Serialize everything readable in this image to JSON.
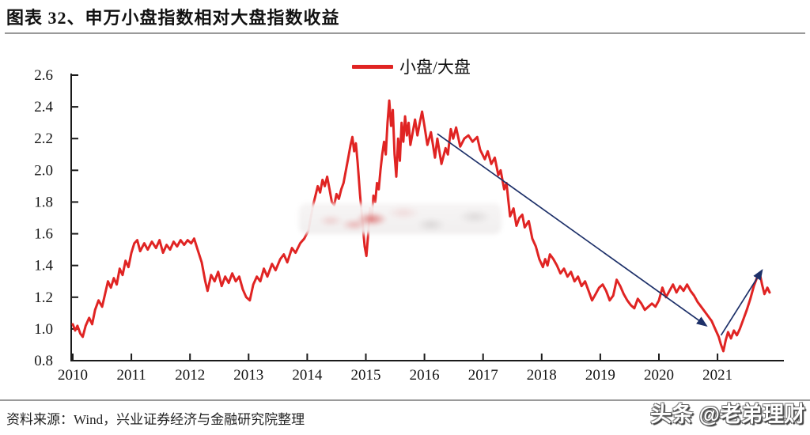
{
  "header": {
    "title": "图表 32、申万小盘指数相对大盘指数收益"
  },
  "footer": {
    "source_note": "资料来源：Wind，兴业证券经济与金融研究院整理",
    "watermark": "头条 @老弟理财"
  },
  "colors": {
    "series_red": "#e02423",
    "arrow_navy": "#1d3069",
    "axis_black": "#1a1a1a",
    "rule_gray": "#9a9a9a"
  },
  "chart_data": {
    "type": "line",
    "title": "图表 32、申万小盘指数相对大盘指数收益",
    "legend_label": "小盘/大盘",
    "legend_position": "top-center",
    "xlabel": "",
    "ylabel": "",
    "grid": false,
    "xlim": [
      2010.0,
      2022.15
    ],
    "ylim": [
      0.8,
      2.6
    ],
    "x_ticks": [
      2010,
      2011,
      2012,
      2013,
      2014,
      2015,
      2016,
      2017,
      2018,
      2019,
      2020,
      2021
    ],
    "y_ticks": [
      "0.8",
      "1.0",
      "1.2",
      "1.4",
      "1.6",
      "1.8",
      "2.0",
      "2.2",
      "2.4",
      "2.6"
    ],
    "series": [
      {
        "name": "小盘/大盘",
        "color": "#e02423",
        "points": [
          [
            2010.0,
            1.03
          ],
          [
            2010.04,
            0.99
          ],
          [
            2010.08,
            1.02
          ],
          [
            2010.13,
            0.97
          ],
          [
            2010.17,
            0.95
          ],
          [
            2010.22,
            1.02
          ],
          [
            2010.28,
            1.07
          ],
          [
            2010.33,
            1.03
          ],
          [
            2010.38,
            1.12
          ],
          [
            2010.44,
            1.18
          ],
          [
            2010.5,
            1.14
          ],
          [
            2010.55,
            1.22
          ],
          [
            2010.6,
            1.3
          ],
          [
            2010.65,
            1.26
          ],
          [
            2010.7,
            1.32
          ],
          [
            2010.75,
            1.28
          ],
          [
            2010.8,
            1.38
          ],
          [
            2010.85,
            1.34
          ],
          [
            2010.9,
            1.43
          ],
          [
            2010.95,
            1.39
          ],
          [
            2011.0,
            1.48
          ],
          [
            2011.05,
            1.54
          ],
          [
            2011.1,
            1.56
          ],
          [
            2011.15,
            1.49
          ],
          [
            2011.22,
            1.54
          ],
          [
            2011.28,
            1.5
          ],
          [
            2011.35,
            1.55
          ],
          [
            2011.42,
            1.51
          ],
          [
            2011.48,
            1.56
          ],
          [
            2011.54,
            1.48
          ],
          [
            2011.6,
            1.53
          ],
          [
            2011.66,
            1.5
          ],
          [
            2011.72,
            1.55
          ],
          [
            2011.78,
            1.52
          ],
          [
            2011.84,
            1.56
          ],
          [
            2011.9,
            1.53
          ],
          [
            2011.96,
            1.56
          ],
          [
            2012.02,
            1.54
          ],
          [
            2012.07,
            1.57
          ],
          [
            2012.13,
            1.5
          ],
          [
            2012.2,
            1.42
          ],
          [
            2012.26,
            1.3
          ],
          [
            2012.3,
            1.24
          ],
          [
            2012.36,
            1.34
          ],
          [
            2012.42,
            1.3
          ],
          [
            2012.48,
            1.36
          ],
          [
            2012.54,
            1.27
          ],
          [
            2012.6,
            1.33
          ],
          [
            2012.66,
            1.29
          ],
          [
            2012.72,
            1.35
          ],
          [
            2012.78,
            1.3
          ],
          [
            2012.84,
            1.33
          ],
          [
            2012.9,
            1.25
          ],
          [
            2012.96,
            1.2
          ],
          [
            2013.02,
            1.18
          ],
          [
            2013.08,
            1.28
          ],
          [
            2013.14,
            1.33
          ],
          [
            2013.2,
            1.3
          ],
          [
            2013.26,
            1.38
          ],
          [
            2013.32,
            1.33
          ],
          [
            2013.4,
            1.41
          ],
          [
            2013.46,
            1.37
          ],
          [
            2013.54,
            1.44
          ],
          [
            2013.6,
            1.47
          ],
          [
            2013.66,
            1.42
          ],
          [
            2013.74,
            1.51
          ],
          [
            2013.8,
            1.48
          ],
          [
            2013.88,
            1.54
          ],
          [
            2013.95,
            1.57
          ],
          [
            2014.02,
            1.62
          ],
          [
            2014.06,
            1.7
          ],
          [
            2014.1,
            1.78
          ],
          [
            2014.14,
            1.84
          ],
          [
            2014.18,
            1.9
          ],
          [
            2014.22,
            1.86
          ],
          [
            2014.26,
            1.94
          ],
          [
            2014.3,
            1.9
          ],
          [
            2014.34,
            1.96
          ],
          [
            2014.38,
            1.88
          ],
          [
            2014.42,
            1.8
          ],
          [
            2014.46,
            1.78
          ],
          [
            2014.5,
            1.85
          ],
          [
            2014.54,
            1.82
          ],
          [
            2014.58,
            1.88
          ],
          [
            2014.62,
            1.92
          ],
          [
            2014.66,
            2.0
          ],
          [
            2014.7,
            2.08
          ],
          [
            2014.74,
            2.16
          ],
          [
            2014.77,
            2.21
          ],
          [
            2014.8,
            2.12
          ],
          [
            2014.83,
            2.17
          ],
          [
            2014.86,
            2.05
          ],
          [
            2014.9,
            1.85
          ],
          [
            2014.94,
            1.68
          ],
          [
            2014.98,
            1.52
          ],
          [
            2015.01,
            1.46
          ],
          [
            2015.04,
            1.6
          ],
          [
            2015.07,
            1.76
          ],
          [
            2015.1,
            1.68
          ],
          [
            2015.13,
            1.84
          ],
          [
            2015.16,
            1.8
          ],
          [
            2015.19,
            1.92
          ],
          [
            2015.22,
            1.88
          ],
          [
            2015.25,
            2.0
          ],
          [
            2015.28,
            2.1
          ],
          [
            2015.31,
            2.18
          ],
          [
            2015.34,
            2.1
          ],
          [
            2015.37,
            2.3
          ],
          [
            2015.4,
            2.44
          ],
          [
            2015.43,
            2.28
          ],
          [
            2015.46,
            2.38
          ],
          [
            2015.49,
            2.1
          ],
          [
            2015.52,
            1.96
          ],
          [
            2015.55,
            2.2
          ],
          [
            2015.58,
            2.06
          ],
          [
            2015.61,
            2.3
          ],
          [
            2015.64,
            2.18
          ],
          [
            2015.67,
            2.34
          ],
          [
            2015.7,
            2.22
          ],
          [
            2015.73,
            2.3
          ],
          [
            2015.76,
            2.16
          ],
          [
            2015.8,
            2.24
          ],
          [
            2015.84,
            2.32
          ],
          [
            2015.88,
            2.22
          ],
          [
            2015.92,
            2.3
          ],
          [
            2015.96,
            2.37
          ],
          [
            2016.0,
            2.28
          ],
          [
            2016.05,
            2.16
          ],
          [
            2016.11,
            2.24
          ],
          [
            2016.18,
            2.08
          ],
          [
            2016.22,
            2.2
          ],
          [
            2016.29,
            2.04
          ],
          [
            2016.36,
            2.14
          ],
          [
            2016.4,
            2.1
          ],
          [
            2016.45,
            2.26
          ],
          [
            2016.49,
            2.2
          ],
          [
            2016.54,
            2.27
          ],
          [
            2016.61,
            2.15
          ],
          [
            2016.68,
            2.2
          ],
          [
            2016.75,
            2.22
          ],
          [
            2016.82,
            2.18
          ],
          [
            2016.9,
            2.21
          ],
          [
            2016.95,
            2.13
          ],
          [
            2017.03,
            2.07
          ],
          [
            2017.08,
            2.12
          ],
          [
            2017.14,
            2.04
          ],
          [
            2017.2,
            2.08
          ],
          [
            2017.26,
            1.97
          ],
          [
            2017.3,
            2.0
          ],
          [
            2017.36,
            1.88
          ],
          [
            2017.4,
            1.92
          ],
          [
            2017.46,
            1.71
          ],
          [
            2017.52,
            1.76
          ],
          [
            2017.57,
            1.65
          ],
          [
            2017.62,
            1.7
          ],
          [
            2017.67,
            1.72
          ],
          [
            2017.71,
            1.64
          ],
          [
            2017.78,
            1.68
          ],
          [
            2017.84,
            1.57
          ],
          [
            2017.9,
            1.52
          ],
          [
            2017.96,
            1.44
          ],
          [
            2018.02,
            1.39
          ],
          [
            2018.06,
            1.44
          ],
          [
            2018.1,
            1.4
          ],
          [
            2018.14,
            1.47
          ],
          [
            2018.2,
            1.44
          ],
          [
            2018.26,
            1.4
          ],
          [
            2018.32,
            1.35
          ],
          [
            2018.38,
            1.38
          ],
          [
            2018.44,
            1.33
          ],
          [
            2018.5,
            1.36
          ],
          [
            2018.56,
            1.3
          ],
          [
            2018.62,
            1.33
          ],
          [
            2018.68,
            1.27
          ],
          [
            2018.74,
            1.3
          ],
          [
            2018.8,
            1.24
          ],
          [
            2018.86,
            1.18
          ],
          [
            2018.92,
            1.22
          ],
          [
            2018.98,
            1.26
          ],
          [
            2019.04,
            1.28
          ],
          [
            2019.1,
            1.24
          ],
          [
            2019.16,
            1.18
          ],
          [
            2019.22,
            1.21
          ],
          [
            2019.28,
            1.31
          ],
          [
            2019.34,
            1.27
          ],
          [
            2019.4,
            1.22
          ],
          [
            2019.46,
            1.18
          ],
          [
            2019.52,
            1.15
          ],
          [
            2019.58,
            1.13
          ],
          [
            2019.64,
            1.19
          ],
          [
            2019.7,
            1.16
          ],
          [
            2019.76,
            1.12
          ],
          [
            2019.82,
            1.14
          ],
          [
            2019.88,
            1.16
          ],
          [
            2019.94,
            1.14
          ],
          [
            2020.0,
            1.18
          ],
          [
            2020.06,
            1.26
          ],
          [
            2020.12,
            1.2
          ],
          [
            2020.18,
            1.24
          ],
          [
            2020.24,
            1.28
          ],
          [
            2020.3,
            1.23
          ],
          [
            2020.36,
            1.27
          ],
          [
            2020.42,
            1.24
          ],
          [
            2020.48,
            1.28
          ],
          [
            2020.54,
            1.24
          ],
          [
            2020.6,
            1.21
          ],
          [
            2020.66,
            1.17
          ],
          [
            2020.72,
            1.14
          ],
          [
            2020.78,
            1.11
          ],
          [
            2020.84,
            1.08
          ],
          [
            2020.9,
            1.05
          ],
          [
            2020.96,
            1.0
          ],
          [
            2021.02,
            0.95
          ],
          [
            2021.06,
            0.9
          ],
          [
            2021.1,
            0.86
          ],
          [
            2021.14,
            0.93
          ],
          [
            2021.18,
            0.98
          ],
          [
            2021.23,
            0.94
          ],
          [
            2021.28,
            0.99
          ],
          [
            2021.33,
            0.96
          ],
          [
            2021.38,
            1.0
          ],
          [
            2021.44,
            1.06
          ],
          [
            2021.5,
            1.12
          ],
          [
            2021.56,
            1.19
          ],
          [
            2021.62,
            1.27
          ],
          [
            2021.68,
            1.33
          ],
          [
            2021.72,
            1.35
          ],
          [
            2021.76,
            1.28
          ],
          [
            2021.8,
            1.22
          ],
          [
            2021.85,
            1.26
          ],
          [
            2021.89,
            1.23
          ]
        ]
      }
    ],
    "annotation_arrows": [
      {
        "from": [
          2016.22,
          2.23
        ],
        "to": [
          2020.81,
          1.02
        ]
      },
      {
        "from": [
          2021.06,
          0.96
        ],
        "to": [
          2021.76,
          1.37
        ]
      }
    ]
  }
}
